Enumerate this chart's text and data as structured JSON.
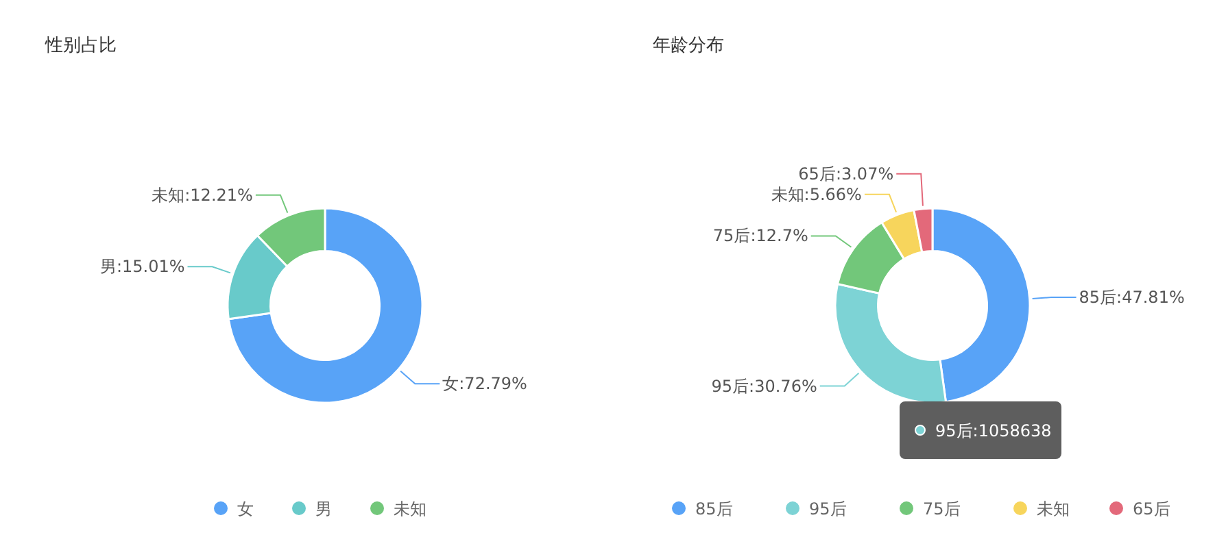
{
  "chart_data": [
    {
      "type": "donut",
      "title": "性别占比",
      "categories": [
        "女",
        "男",
        "未知"
      ],
      "values": [
        72.79,
        15.01,
        12.21
      ],
      "colors": [
        "#58a3f7",
        "#68caca",
        "#72c77a"
      ],
      "value_labels": [
        "女:72.79%",
        "男:15.01%",
        "未知:12.21%"
      ],
      "legend": "bottom"
    },
    {
      "type": "donut",
      "title": "年龄分布",
      "categories": [
        "85后",
        "95后",
        "75后",
        "未知",
        "65后"
      ],
      "values": [
        47.81,
        30.76,
        12.7,
        5.66,
        3.07
      ],
      "colors": [
        "#58a3f7",
        "#7dd3d5",
        "#72c77a",
        "#f7d55c",
        "#e3697a"
      ],
      "value_labels": [
        "85后:47.81%",
        "95后:30.76%",
        "75后:12.7%",
        "未知:5.66%",
        "65后:3.07%"
      ],
      "legend": "bottom",
      "annotations": [
        "95后:1058638"
      ]
    }
  ]
}
